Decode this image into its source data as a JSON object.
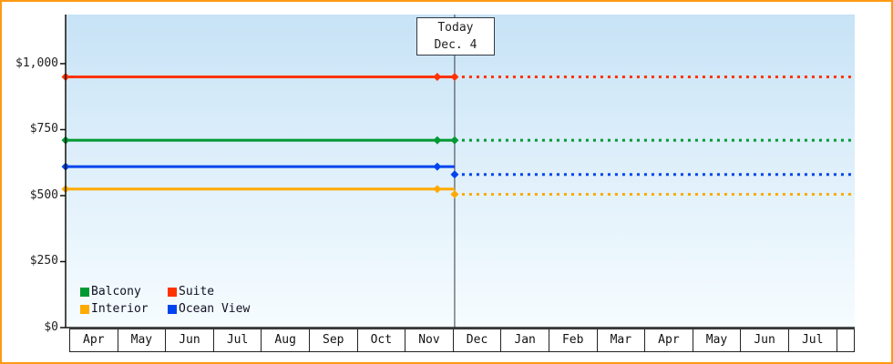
{
  "colors": {
    "frame_border": "#ff9913",
    "axis": "#111111",
    "today_line": "#333a44"
  },
  "today_annotation": {
    "line1": "Today",
    "line2": "Dec. 4"
  },
  "chart_data": {
    "type": "line",
    "title": "",
    "xlabel": "",
    "ylabel": "",
    "grid": false,
    "legend_position": "inside-bottom-left",
    "ylim": [
      0,
      1186
    ],
    "y_ticks": [
      "$1,000",
      "$750",
      "$500",
      "$250",
      "$0"
    ],
    "y_tick_values": [
      1000,
      750,
      500,
      250,
      0
    ],
    "x_months": [
      "Apr",
      "May",
      "Jun",
      "Jul",
      "Aug",
      "Sep",
      "Oct",
      "Nov",
      "Dec",
      "Jan",
      "Feb",
      "Mar",
      "Apr",
      "May",
      "Jun",
      "Jul"
    ],
    "today_x_frac": 0.493,
    "last_marker_x_frac": 0.471,
    "series": [
      {
        "name": "Suite",
        "color": "#ff3300",
        "current_price": 950,
        "forecast_price": 950
      },
      {
        "name": "Balcony",
        "color": "#009933",
        "current_price": 710,
        "forecast_price": 710
      },
      {
        "name": "Ocean View",
        "color": "#0044ee",
        "current_price": 610,
        "forecast_price": 580
      },
      {
        "name": "Interior",
        "color": "#ffaa00",
        "current_price": 525,
        "forecast_price": 505
      }
    ],
    "legend": [
      {
        "label": "Balcony",
        "color": "#009933"
      },
      {
        "label": "Suite",
        "color": "#ff3300"
      },
      {
        "label": "Interior",
        "color": "#ffaa00"
      },
      {
        "label": "Ocean View",
        "color": "#0044ee"
      }
    ]
  }
}
